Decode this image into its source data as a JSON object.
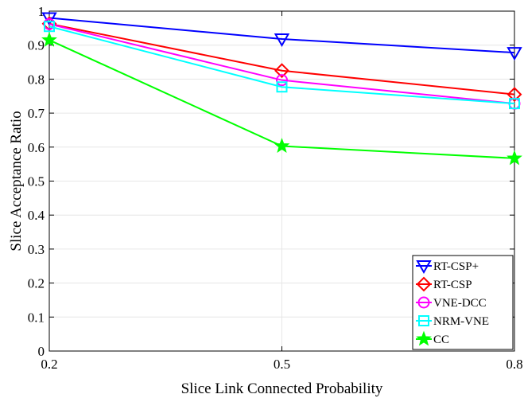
{
  "chart_data": {
    "type": "line",
    "title": "",
    "xlabel": "Slice Link Connected Probability",
    "ylabel": "Slice Acceptance Ratio",
    "x": [
      0.2,
      0.5,
      0.8
    ],
    "xlim": [
      0.2,
      0.8
    ],
    "ylim": [
      0,
      1
    ],
    "xticks": [
      "0.2",
      "0.5",
      "0.8"
    ],
    "yticks": [
      "0",
      "0.1",
      "0.2",
      "0.3",
      "0.4",
      "0.5",
      "0.6",
      "0.7",
      "0.8",
      "0.9",
      "1"
    ],
    "grid": true,
    "legend_position": "bottom-right",
    "series": [
      {
        "name": "RT-CSP+",
        "values": [
          0.98,
          0.918,
          0.878
        ],
        "color": "#0000FF",
        "marker": "triangle-down"
      },
      {
        "name": "RT-CSP",
        "values": [
          0.963,
          0.825,
          0.755
        ],
        "color": "#FF0000",
        "marker": "diamond"
      },
      {
        "name": "VNE-DCC",
        "values": [
          0.962,
          0.797,
          0.728
        ],
        "color": "#FF00FF",
        "marker": "circle"
      },
      {
        "name": "NRM-VNE",
        "values": [
          0.955,
          0.777,
          0.728
        ],
        "color": "#00FFFF",
        "marker": "square"
      },
      {
        "name": "CC",
        "values": [
          0.915,
          0.603,
          0.567
        ],
        "color": "#00FF00",
        "marker": "star"
      }
    ]
  }
}
